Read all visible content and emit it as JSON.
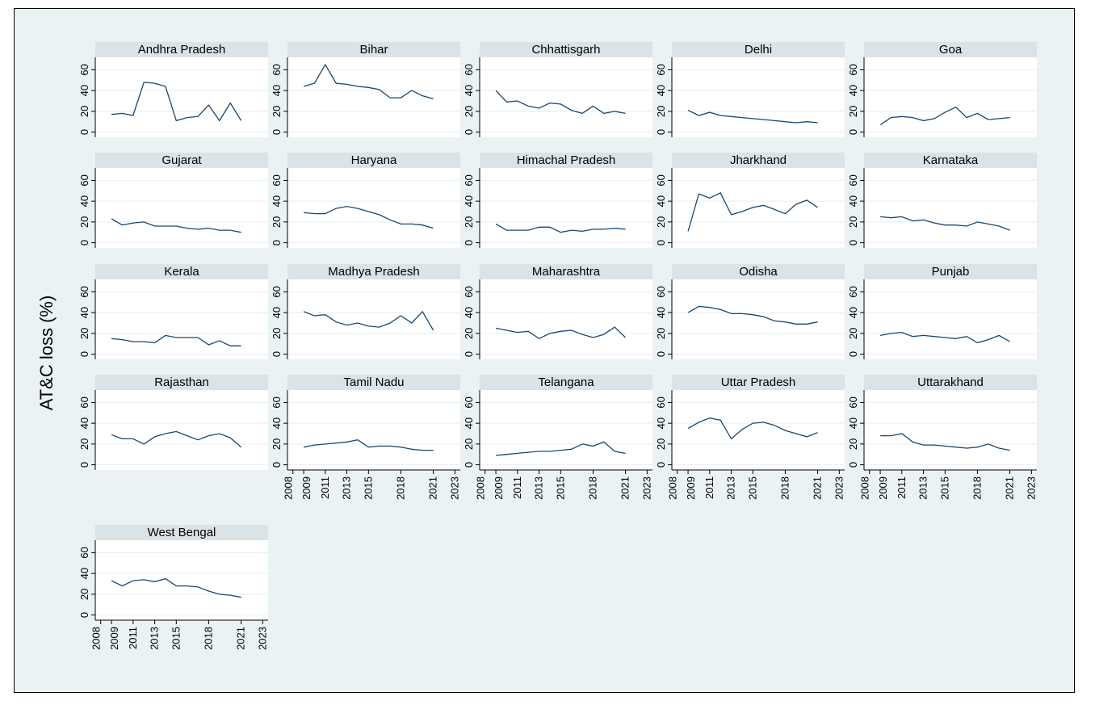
{
  "chart_data": {
    "type": "line",
    "ylabel": "AT&C loss (%)",
    "ylim": [
      -5,
      72
    ],
    "yticks": [
      0,
      20,
      40,
      60
    ],
    "xticks": [
      "2008",
      "2009",
      "2011",
      "2013",
      "2015",
      "2018",
      "2021",
      "2023"
    ],
    "line_color": "#1a476f",
    "panel_header_color": "#d9e3e8",
    "panels": [
      {
        "name": "Andhra Pradesh",
        "x": [
          2009,
          2010,
          2011,
          2012,
          2013,
          2014,
          2015,
          2016,
          2017,
          2018,
          2019,
          2020,
          2021
        ],
        "y": [
          17,
          18,
          16,
          48,
          47,
          44,
          11,
          14,
          15,
          26,
          11,
          28,
          11
        ]
      },
      {
        "name": "Bihar",
        "x": [
          2009,
          2010,
          2011,
          2012,
          2013,
          2014,
          2015,
          2016,
          2017,
          2018,
          2019,
          2020,
          2021
        ],
        "y": [
          44,
          47,
          65,
          47,
          46,
          44,
          43,
          41,
          33,
          33,
          40,
          35,
          32
        ]
      },
      {
        "name": "Chhattisgarh",
        "x": [
          2009,
          2010,
          2011,
          2012,
          2013,
          2014,
          2015,
          2016,
          2017,
          2018,
          2019,
          2020,
          2021
        ],
        "y": [
          40,
          29,
          30,
          25,
          23,
          28,
          27,
          21,
          18,
          25,
          18,
          20,
          18
        ]
      },
      {
        "name": "Delhi",
        "x": [
          2009,
          2010,
          2011,
          2012,
          2013,
          2014,
          2015,
          2016,
          2017,
          2018,
          2019,
          2020,
          2021
        ],
        "y": [
          21,
          16,
          19,
          16,
          15,
          14,
          13,
          12,
          11,
          10,
          9,
          10,
          9
        ]
      },
      {
        "name": "Goa",
        "x": [
          2009,
          2010,
          2011,
          2012,
          2013,
          2014,
          2015,
          2016,
          2017,
          2018,
          2019,
          2020,
          2021
        ],
        "y": [
          7,
          14,
          15,
          14,
          11,
          13,
          19,
          24,
          14,
          18,
          12,
          13,
          14
        ]
      },
      {
        "name": "Gujarat",
        "x": [
          2009,
          2010,
          2011,
          2012,
          2013,
          2014,
          2015,
          2016,
          2017,
          2018,
          2019,
          2020,
          2021
        ],
        "y": [
          23,
          17,
          19,
          20,
          16,
          16,
          16,
          14,
          13,
          14,
          12,
          12,
          10
        ]
      },
      {
        "name": "Haryana",
        "x": [
          2009,
          2010,
          2011,
          2012,
          2013,
          2014,
          2015,
          2016,
          2017,
          2018,
          2019,
          2020,
          2021
        ],
        "y": [
          29,
          28,
          28,
          33,
          35,
          33,
          30,
          27,
          22,
          18,
          18,
          17,
          14
        ]
      },
      {
        "name": "Himachal Pradesh",
        "x": [
          2009,
          2010,
          2011,
          2012,
          2013,
          2014,
          2015,
          2016,
          2017,
          2018,
          2019,
          2020,
          2021
        ],
        "y": [
          18,
          12,
          12,
          12,
          15,
          15,
          10,
          12,
          11,
          13,
          13,
          14,
          13
        ]
      },
      {
        "name": "Jharkhand",
        "x": [
          2009,
          2010,
          2011,
          2012,
          2013,
          2014,
          2015,
          2016,
          2017,
          2018,
          2019,
          2020,
          2021
        ],
        "y": [
          11,
          47,
          43,
          48,
          27,
          30,
          34,
          36,
          32,
          28,
          37,
          41,
          34
        ]
      },
      {
        "name": "Karnataka",
        "x": [
          2009,
          2010,
          2011,
          2012,
          2013,
          2014,
          2015,
          2016,
          2017,
          2018,
          2019,
          2020,
          2021
        ],
        "y": [
          25,
          24,
          25,
          21,
          22,
          19,
          17,
          17,
          16,
          20,
          18,
          16,
          12
        ]
      },
      {
        "name": "Kerala",
        "x": [
          2009,
          2010,
          2011,
          2012,
          2013,
          2014,
          2015,
          2016,
          2017,
          2018,
          2019,
          2020,
          2021
        ],
        "y": [
          15,
          14,
          12,
          12,
          11,
          18,
          16,
          16,
          16,
          9,
          13,
          8,
          8
        ]
      },
      {
        "name": "Madhya Pradesh",
        "x": [
          2009,
          2010,
          2011,
          2012,
          2013,
          2014,
          2015,
          2016,
          2017,
          2018,
          2019,
          2020,
          2021
        ],
        "y": [
          41,
          37,
          38,
          31,
          28,
          30,
          27,
          26,
          30,
          37,
          30,
          41,
          23
        ]
      },
      {
        "name": "Maharashtra",
        "x": [
          2009,
          2010,
          2011,
          2012,
          2013,
          2014,
          2015,
          2016,
          2017,
          2018,
          2019,
          2020,
          2021
        ],
        "y": [
          25,
          23,
          21,
          22,
          15,
          20,
          22,
          23,
          19,
          16,
          19,
          26,
          16
        ]
      },
      {
        "name": "Odisha",
        "x": [
          2009,
          2010,
          2011,
          2012,
          2013,
          2014,
          2015,
          2016,
          2017,
          2018,
          2019,
          2020,
          2021
        ],
        "y": [
          40,
          46,
          45,
          43,
          39,
          39,
          38,
          36,
          32,
          31,
          29,
          29,
          31
        ]
      },
      {
        "name": "Punjab",
        "x": [
          2009,
          2010,
          2011,
          2012,
          2013,
          2014,
          2015,
          2016,
          2017,
          2018,
          2019,
          2020,
          2021
        ],
        "y": [
          18,
          20,
          21,
          17,
          18,
          17,
          16,
          15,
          17,
          11,
          14,
          18,
          12
        ]
      },
      {
        "name": "Rajasthan",
        "x": [
          2009,
          2010,
          2011,
          2012,
          2013,
          2014,
          2015,
          2016,
          2017,
          2018,
          2019,
          2020,
          2021
        ],
        "y": [
          29,
          25,
          25,
          20,
          27,
          30,
          32,
          28,
          24,
          28,
          30,
          26,
          17
        ]
      },
      {
        "name": "Tamil Nadu",
        "x": [
          2009,
          2010,
          2011,
          2012,
          2013,
          2014,
          2015,
          2016,
          2017,
          2018,
          2019,
          2020,
          2021
        ],
        "y": [
          17,
          19,
          20,
          21,
          22,
          24,
          17,
          18,
          18,
          17,
          15,
          14,
          14
        ]
      },
      {
        "name": "Telangana",
        "x": [
          2009,
          2010,
          2011,
          2012,
          2013,
          2014,
          2015,
          2016,
          2017,
          2018,
          2019,
          2020,
          2021
        ],
        "y": [
          9,
          10,
          11,
          12,
          13,
          13,
          14,
          15,
          20,
          18,
          22,
          13,
          11
        ]
      },
      {
        "name": "Uttar Pradesh",
        "x": [
          2009,
          2010,
          2011,
          2012,
          2013,
          2014,
          2015,
          2016,
          2017,
          2018,
          2019,
          2020,
          2021
        ],
        "y": [
          35,
          41,
          45,
          43,
          25,
          34,
          40,
          41,
          38,
          33,
          30,
          27,
          31
        ]
      },
      {
        "name": "Uttarakhand",
        "x": [
          2009,
          2010,
          2011,
          2012,
          2013,
          2014,
          2015,
          2016,
          2017,
          2018,
          2019,
          2020,
          2021
        ],
        "y": [
          28,
          28,
          30,
          22,
          19,
          19,
          18,
          17,
          16,
          17,
          20,
          16,
          14
        ]
      },
      {
        "name": "West Bengal",
        "x": [
          2009,
          2010,
          2011,
          2012,
          2013,
          2014,
          2015,
          2016,
          2017,
          2018,
          2019,
          2020,
          2021
        ],
        "y": [
          33,
          28,
          33,
          34,
          32,
          35,
          28,
          28,
          27,
          23,
          20,
          19,
          17
        ]
      }
    ]
  }
}
